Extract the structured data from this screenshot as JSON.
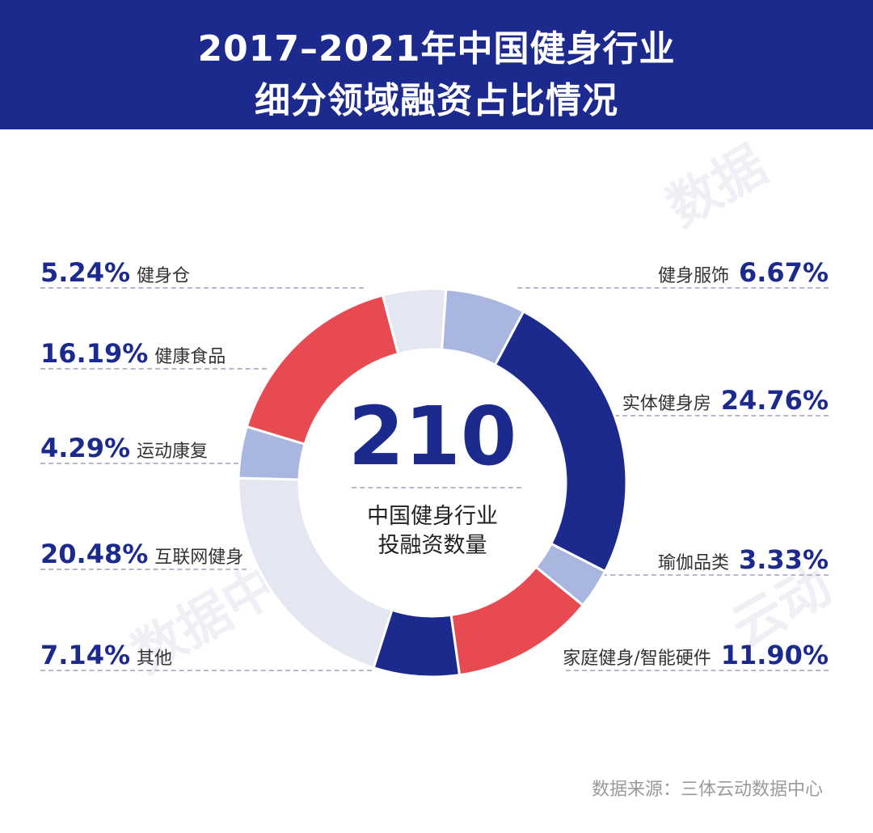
{
  "header": {
    "title_line1": "2017–2021年中国健身行业",
    "title_line2": "细分领域融资占比情况"
  },
  "center": {
    "total": "210",
    "caption_line1": "中国健身行业",
    "caption_line2": "投融资数量"
  },
  "source": "数据来源：三体云动数据中心",
  "colors": {
    "navy": "#1b2a8c",
    "red": "#e84a52",
    "light_blue": "#a9b6e0",
    "pale": "#e4e7f1"
  },
  "chart_data": {
    "type": "pie",
    "donut": true,
    "unit": "%",
    "slices": [
      {
        "label": "健身服饰",
        "value": 6.67,
        "display": "6.67%",
        "color": "#a9b6e0",
        "side": "right"
      },
      {
        "label": "实体健身房",
        "value": 24.76,
        "display": "24.76%",
        "color": "#1b2a8c",
        "side": "right"
      },
      {
        "label": "瑜伽品类",
        "value": 3.33,
        "display": "3.33%",
        "color": "#a9b6e0",
        "side": "right"
      },
      {
        "label": "家庭健身/智能硬件",
        "value": 11.9,
        "display": "11.90%",
        "color": "#e84a52",
        "side": "right"
      },
      {
        "label": "其他",
        "value": 7.14,
        "display": "7.14%",
        "color": "#1b2a8c",
        "side": "left"
      },
      {
        "label": "互联网健身",
        "value": 20.48,
        "display": "20.48%",
        "color": "#e4e7f1",
        "side": "left"
      },
      {
        "label": "运动康复",
        "value": 4.29,
        "display": "4.29%",
        "color": "#a9b6e0",
        "side": "left"
      },
      {
        "label": "健康食品",
        "value": 16.19,
        "display": "16.19%",
        "color": "#e84a52",
        "side": "left"
      },
      {
        "label": "健身仓",
        "value": 5.24,
        "display": "5.24%",
        "color": "#e4e7f1",
        "side": "left"
      }
    ]
  }
}
